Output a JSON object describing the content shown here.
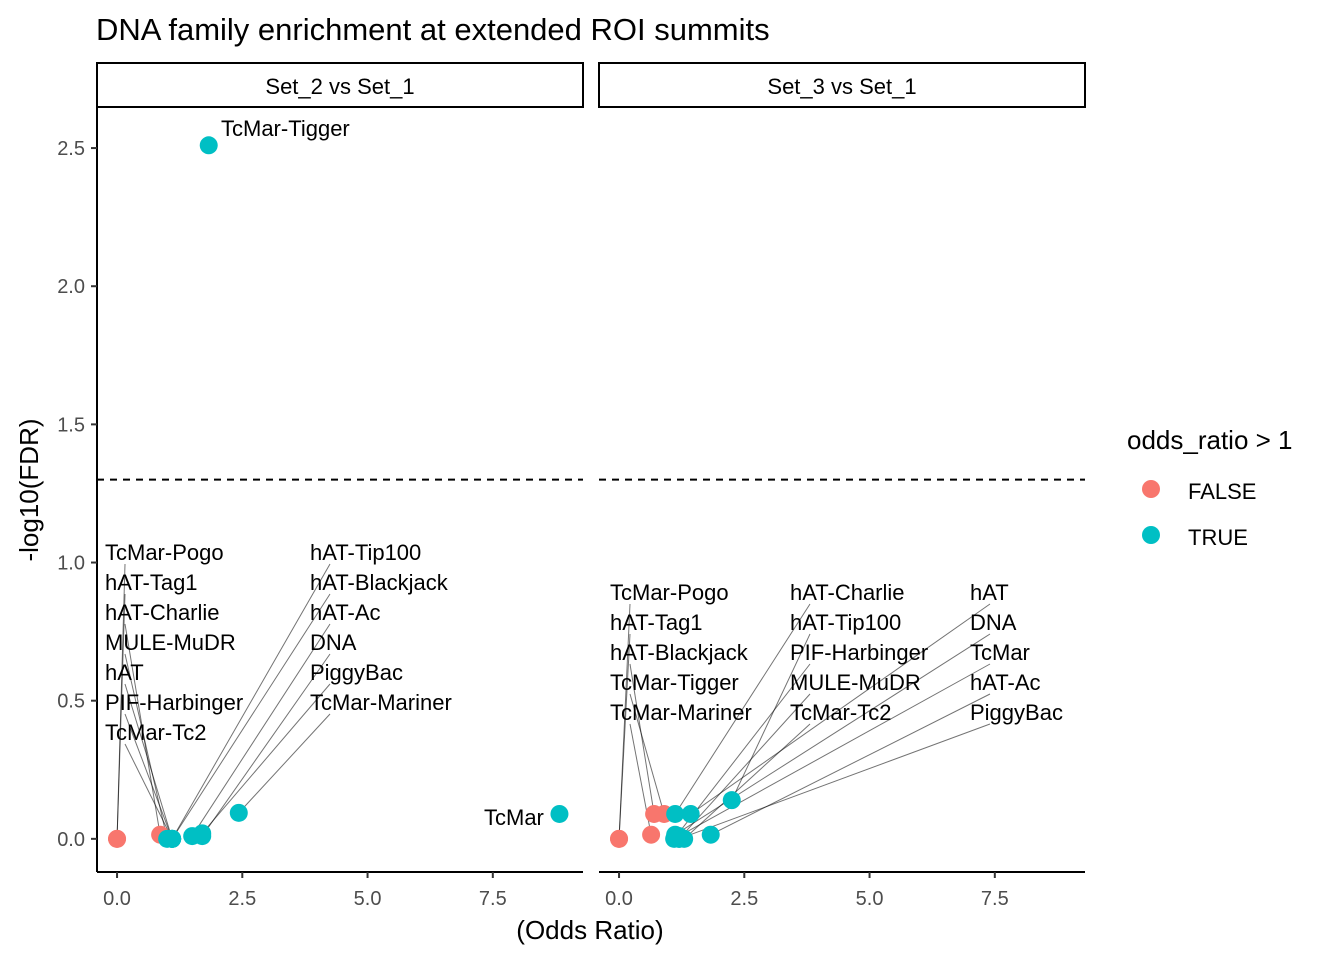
{
  "chart_data": {
    "type": "scatter",
    "title": "DNA family enrichment at extended ROI summits",
    "xlabel": "(Odds Ratio)",
    "ylabel": "-log10(FDR)",
    "xlim": [
      -0.4,
      9.3
    ],
    "ylim": [
      -0.12,
      2.645
    ],
    "x_ticks": [
      "0.0",
      "2.5",
      "5.0",
      "7.5"
    ],
    "x_tick_values": [
      0,
      2.5,
      5,
      7.5
    ],
    "y_ticks": [
      "0.0",
      "0.5",
      "1.0",
      "1.5",
      "2.0",
      "2.5"
    ],
    "y_tick_values": [
      0,
      0.5,
      1,
      1.5,
      2,
      2.5
    ],
    "threshold_line": 1.3,
    "grid": false,
    "legend": {
      "title": "odds_ratio > 1",
      "placement": "right",
      "entries": [
        {
          "label": "FALSE",
          "color": "#F8766D"
        },
        {
          "label": "TRUE",
          "color": "#00BFC4"
        }
      ]
    },
    "panels": [
      {
        "title": "Set_2 vs Set_1",
        "points": [
          {
            "label": "TcMar-Tigger",
            "x": 1.83,
            "y": 2.51,
            "or_gt1": true
          },
          {
            "label": "TcMar-Pogo",
            "x": 0.0,
            "y": 0.0,
            "or_gt1": false
          },
          {
            "label": "hAT-Tag1",
            "x": 0.0,
            "y": 0.0,
            "or_gt1": false
          },
          {
            "label": "hAT-Charlie",
            "x": 0.86,
            "y": 0.015,
            "or_gt1": false
          },
          {
            "label": "MULE-MuDR",
            "x": 1.0,
            "y": 0.0,
            "or_gt1": true
          },
          {
            "label": "hAT",
            "x": 1.1,
            "y": 0.0,
            "or_gt1": true
          },
          {
            "label": "PIF-Harbinger",
            "x": 1.1,
            "y": 0.0,
            "or_gt1": true
          },
          {
            "label": "TcMar-Tc2",
            "x": 1.1,
            "y": 0.0,
            "or_gt1": true
          },
          {
            "label": "hAT-Tip100",
            "x": 1.1,
            "y": 0.0,
            "or_gt1": true
          },
          {
            "label": "hAT-Blackjack",
            "x": 1.1,
            "y": 0.0,
            "or_gt1": true
          },
          {
            "label": "hAT-Ac",
            "x": 1.5,
            "y": 0.01,
            "or_gt1": true
          },
          {
            "label": "DNA",
            "x": 1.7,
            "y": 0.01,
            "or_gt1": true
          },
          {
            "label": "PiggyBac",
            "x": 1.7,
            "y": 0.02,
            "or_gt1": true
          },
          {
            "label": "TcMar-Mariner",
            "x": 2.43,
            "y": 0.094,
            "or_gt1": true
          },
          {
            "label": "TcMar",
            "x": 8.83,
            "y": 0.09,
            "or_gt1": true
          }
        ]
      },
      {
        "title": "Set_3 vs Set_1",
        "points": [
          {
            "label": "TcMar-Pogo",
            "x": 0.0,
            "y": 0.0,
            "or_gt1": false
          },
          {
            "label": "hAT-Tag1",
            "x": 0.0,
            "y": 0.0,
            "or_gt1": false
          },
          {
            "label": "hAT-Blackjack",
            "x": 0.7,
            "y": 0.09,
            "or_gt1": false
          },
          {
            "label": "TcMar-Tigger",
            "x": 0.9,
            "y": 0.09,
            "or_gt1": false
          },
          {
            "label": "hAT-Charlie",
            "x": 1.12,
            "y": 0.09,
            "or_gt1": true
          },
          {
            "label": "hAT",
            "x": 1.43,
            "y": 0.09,
            "or_gt1": true
          },
          {
            "label": "hAT-Tip100",
            "x": 2.25,
            "y": 0.14,
            "or_gt1": true
          },
          {
            "label": "TcMar-Mariner",
            "x": 0.64,
            "y": 0.015,
            "or_gt1": false
          },
          {
            "label": "DNA",
            "x": 1.12,
            "y": 0.015,
            "or_gt1": true
          },
          {
            "label": "TcMar",
            "x": 1.2,
            "y": 0.01,
            "or_gt1": true
          },
          {
            "label": "hAT-Ac",
            "x": 1.83,
            "y": 0.015,
            "or_gt1": true
          },
          {
            "label": "PIF-Harbinger",
            "x": 1.1,
            "y": 0.0,
            "or_gt1": true
          },
          {
            "label": "PiggyBac",
            "x": 1.2,
            "y": 0.0,
            "or_gt1": true
          },
          {
            "label": "MULE-MuDR",
            "x": 1.2,
            "y": 0.0,
            "or_gt1": true
          },
          {
            "label": "TcMar-Tc2",
            "x": 1.3,
            "y": 0.0,
            "or_gt1": true
          }
        ]
      }
    ]
  }
}
